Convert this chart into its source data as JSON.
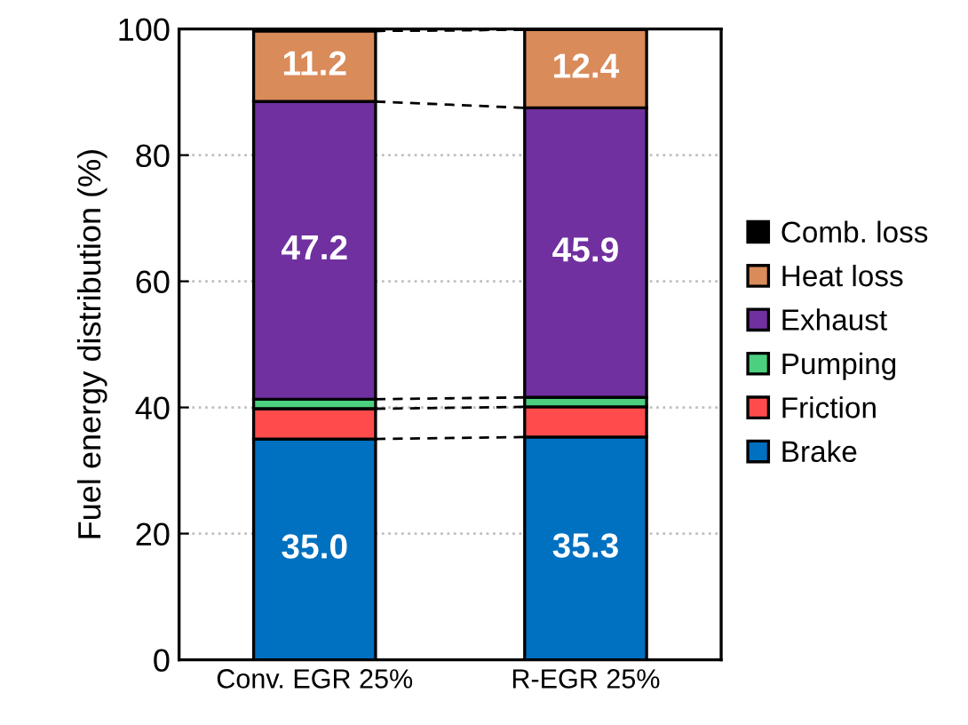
{
  "chart_data": {
    "type": "bar",
    "stacked": true,
    "ylabel": "Fuel energy distribution (%)",
    "categories": [
      "Conv. EGR 25%",
      "R-EGR 25%"
    ],
    "series": [
      {
        "name": "Brake",
        "color": "#0070c0",
        "values": [
          35.0,
          35.3
        ],
        "value_labels": [
          "35.0",
          "35.3"
        ]
      },
      {
        "name": "Friction",
        "color": "#ff4b4b",
        "values": [
          4.8,
          4.8
        ]
      },
      {
        "name": "Pumping",
        "color": "#4ccf7f",
        "values": [
          1.5,
          1.5
        ]
      },
      {
        "name": "Exhaust",
        "color": "#7030a0",
        "values": [
          47.2,
          45.9
        ],
        "value_labels": [
          "47.2",
          "45.9"
        ]
      },
      {
        "name": "Heat loss",
        "color": "#d98b5a",
        "values": [
          11.2,
          12.4
        ],
        "value_labels": [
          "11.2",
          "12.4"
        ]
      },
      {
        "name": "Comb. loss",
        "color": "#000000",
        "values": [
          null,
          null
        ]
      }
    ],
    "ylim": [
      0,
      100
    ],
    "yticks": [
      0,
      20,
      40,
      60,
      80,
      100
    ],
    "grid": "y",
    "legend": "right"
  }
}
